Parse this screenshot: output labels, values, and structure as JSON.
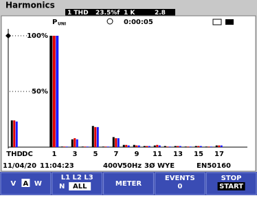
{
  "header": {
    "title": "Harmonics",
    "readouts": [
      "1 THD",
      "23.5%f",
      "1 K",
      "2.8"
    ]
  },
  "status": {
    "parameter": "P",
    "parameter_sub": "UNI",
    "elapsed": "0:00:05"
  },
  "chart_data": {
    "type": "bar",
    "categories": [
      "THD",
      "DC",
      "1",
      null,
      "3",
      null,
      "5",
      null,
      "7",
      null,
      "9",
      null,
      "11",
      null,
      "13",
      null,
      "15",
      null,
      "17"
    ],
    "series": [
      {
        "color": "#000000",
        "values": [
          24,
          0,
          100,
          0.5,
          7,
          0.5,
          19,
          0.5,
          9,
          2,
          2,
          1,
          1.5,
          1,
          1,
          0.5,
          1,
          0.5,
          1.5
        ]
      },
      {
        "color": "#e00000",
        "values": [
          24,
          0,
          100,
          0.5,
          8,
          0.5,
          18,
          0.5,
          8,
          2,
          1.5,
          1,
          2,
          0.5,
          1,
          0.5,
          1,
          0.5,
          1.5
        ]
      },
      {
        "color": "#1a1aff",
        "values": [
          23,
          0,
          100,
          0.5,
          7,
          0.5,
          18,
          0.5,
          8,
          1.5,
          1.5,
          1,
          1.5,
          0.5,
          1,
          0.5,
          1,
          0.5,
          1.5
        ]
      }
    ],
    "ylim": [
      0,
      100
    ],
    "yticks": [
      {
        "value": 50,
        "label": "50%"
      },
      {
        "value": 100,
        "label": "100%"
      }
    ],
    "grid": true
  },
  "footer": {
    "date": "11/04/20",
    "time": "11:04:23",
    "voltage": "400V",
    "frequency": "50Hz",
    "config": "3Ø WYE",
    "standard": "EN50160"
  },
  "softkeys": [
    [
      "V",
      "A",
      "W"
    ],
    [
      "L1 L2 L3",
      "N",
      "ALL"
    ],
    [
      "METER"
    ],
    [
      "EVENTS",
      "0"
    ],
    [
      "STOP",
      "START"
    ]
  ]
}
